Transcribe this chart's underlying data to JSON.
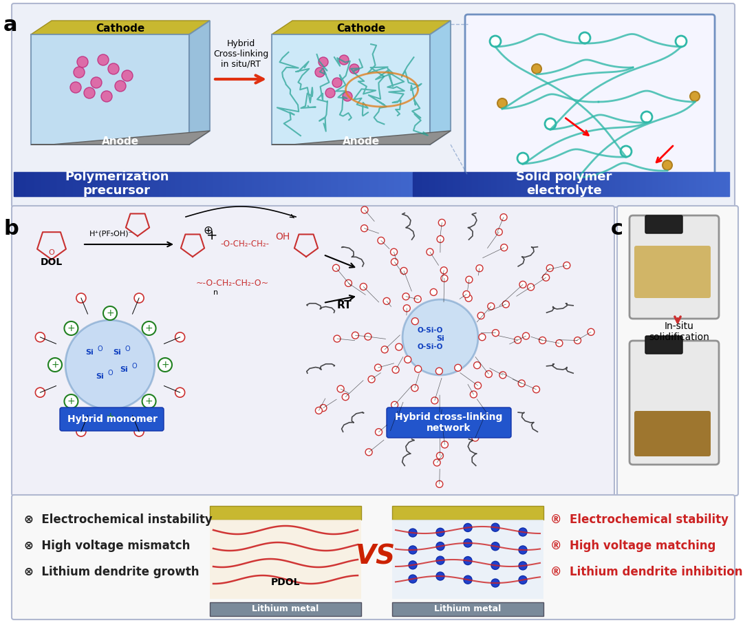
{
  "panel_a_label": "a",
  "panel_b_label": "b",
  "panel_c_label": "c",
  "panel_a_bg": "#eef0f8",
  "panel_b_bg": "#f0f0f8",
  "panel_c_bg": "#ffffff",
  "panel_bottom_bg": "#f8f8f8",
  "blue_arrow_color": "#e05020",
  "label_blue": "#2040c0",
  "poly_precursor_text": "Polymerization\nprecursor",
  "solid_polymer_text": "Solid polymer\nelectrolyte",
  "hybrid_monomer_text": "Hybrid monomer",
  "hybrid_network_text": "Hybrid cross-linking\nnetwork",
  "hybrid_crosslinking_text": "Hybrid\nCross-linking\nin situ/RT",
  "insitu_text": "In-situ\nsolidification",
  "cathode_text": "Cathode",
  "anode_text": "Anode",
  "pdol_text": "PDOL",
  "lithium_metal_text": "Lithium metal",
  "vs_color": "#cc2200",
  "neg_items": [
    "⊗  Electrochemical instability",
    "⊗  High voltage mismatch",
    "⊗  Lithium dendrite growth"
  ],
  "pos_items": [
    "®  Electrochemical stability",
    "®  High voltage matching",
    "®  Lithium dendrite inhibition"
  ],
  "neg_color": "#222222",
  "pos_color": "#cc2222",
  "rt_text": "RT",
  "dol_text": "DOL",
  "hpf_text": "H⁺(PF₅OH)⁻",
  "oh_text": "OH",
  "bg_white": "#ffffff",
  "cathode_color": "#c8b830",
  "anode_color": "#909090",
  "electrolyte_color": "#a8d8f0",
  "border_color": "#8090c0",
  "blue_banner_color": "#2255cc",
  "banner_gradient_start": "#1a3bb5",
  "banner_gradient_end": "#4488dd",
  "yellow_bar_color": "#c8b830",
  "gray_bar_color": "#7a8a9a"
}
